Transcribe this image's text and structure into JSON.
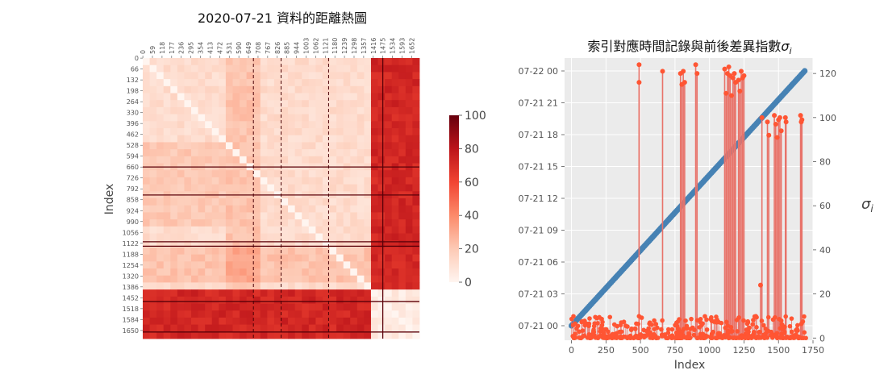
{
  "chart_data": [
    {
      "type": "heatmap",
      "title": "2020-07-21 資料的距離熱圖",
      "xlabel": "",
      "ylabel": "Index",
      "xticks": [
        "0",
        "59",
        "118",
        "177",
        "236",
        "295",
        "354",
        "413",
        "472",
        "531",
        "590",
        "649",
        "708",
        "767",
        "826",
        "885",
        "944",
        "1003",
        "1062",
        "1121",
        "1180",
        "1239",
        "1298",
        "1357",
        "1416",
        "1475",
        "1534",
        "1593",
        "1652"
      ],
      "yticks": [
        "0",
        "66",
        "132",
        "198",
        "264",
        "330",
        "396",
        "462",
        "528",
        "594",
        "660",
        "726",
        "792",
        "858",
        "924",
        "990",
        "1056",
        "1122",
        "1188",
        "1254",
        "1320",
        "1386",
        "1452",
        "1518",
        "1584",
        "1650"
      ],
      "n": 1700,
      "value_range": [
        0,
        100
      ],
      "colorbar": {
        "ticks": [
          "0",
          "20",
          "40",
          "60",
          "80",
          "100"
        ],
        "colormap": "Reds"
      },
      "blocks": [
        {
          "rows": [
            0,
            1385
          ],
          "cols": [
            0,
            1385
          ],
          "level": 12
        },
        {
          "rows": [
            0,
            1385
          ],
          "cols": [
            1386,
            1699
          ],
          "level": 72
        },
        {
          "rows": [
            1386,
            1699
          ],
          "cols": [
            0,
            1385
          ],
          "level": 72
        },
        {
          "rows": [
            1386,
            1699
          ],
          "cols": [
            1386,
            1699
          ],
          "level": 5
        }
      ],
      "dark_lines": [
        660,
        830,
        1113,
        1140,
        1475,
        1660
      ],
      "dashed_lines": [
        680,
        850,
        1142
      ]
    },
    {
      "type": "scatter",
      "title": "索引對應時間記錄與前後差異指數",
      "title_symbol": "σ",
      "title_subscript": "i",
      "xlabel": "Index",
      "ylabel_right": "σ",
      "ylabel_right_subscript": "i",
      "xlim": [
        -50,
        1750
      ],
      "xticks": [
        "0",
        "250",
        "500",
        "750",
        "1000",
        "1250",
        "1500",
        "1750"
      ],
      "time_axis": {
        "ticks": [
          "07-21 00",
          "07-21 03",
          "07-21 06",
          "07-21 09",
          "07-21 12",
          "07-21 15",
          "07-21 18",
          "07-21 21",
          "07-22 00"
        ],
        "series": {
          "name": "",
          "color": "#4682b4",
          "start": "07-21 00:00",
          "end": "07-22 00:00",
          "x_range": [
            0,
            1690
          ]
        }
      },
      "sigma_axis": {
        "ylim": [
          -1,
          127
        ],
        "ticks": [
          "0",
          "20",
          "40",
          "60",
          "80",
          "100",
          "120"
        ],
        "series": {
          "name": "",
          "color": "#ff5533",
          "stem_color": "#e8736a",
          "baseline_max": 10,
          "spikes": [
            [
              490,
              124
            ],
            [
              490,
              116
            ],
            [
              660,
              121
            ],
            [
              790,
              120
            ],
            [
              800,
              115
            ],
            [
              810,
              121
            ],
            [
              820,
              116
            ],
            [
              900,
              124
            ],
            [
              910,
              120
            ],
            [
              1110,
              122
            ],
            [
              1120,
              111
            ],
            [
              1130,
              120
            ],
            [
              1140,
              123
            ],
            [
              1150,
              119
            ],
            [
              1160,
              110
            ],
            [
              1170,
              118
            ],
            [
              1180,
              120
            ],
            [
              1190,
              116
            ],
            [
              1210,
              117
            ],
            [
              1220,
              112
            ],
            [
              1230,
              121
            ],
            [
              1240,
              118
            ],
            [
              1250,
              119
            ],
            [
              1370,
              24
            ],
            [
              1380,
              100
            ],
            [
              1420,
              98
            ],
            [
              1430,
              92
            ],
            [
              1470,
              101
            ],
            [
              1480,
              97
            ],
            [
              1490,
              91
            ],
            [
              1500,
              99
            ],
            [
              1510,
              100
            ],
            [
              1520,
              94
            ],
            [
              1550,
              100
            ],
            [
              1555,
              98
            ],
            [
              1660,
              101
            ],
            [
              1665,
              98
            ],
            [
              1670,
              99
            ]
          ]
        }
      }
    }
  ]
}
